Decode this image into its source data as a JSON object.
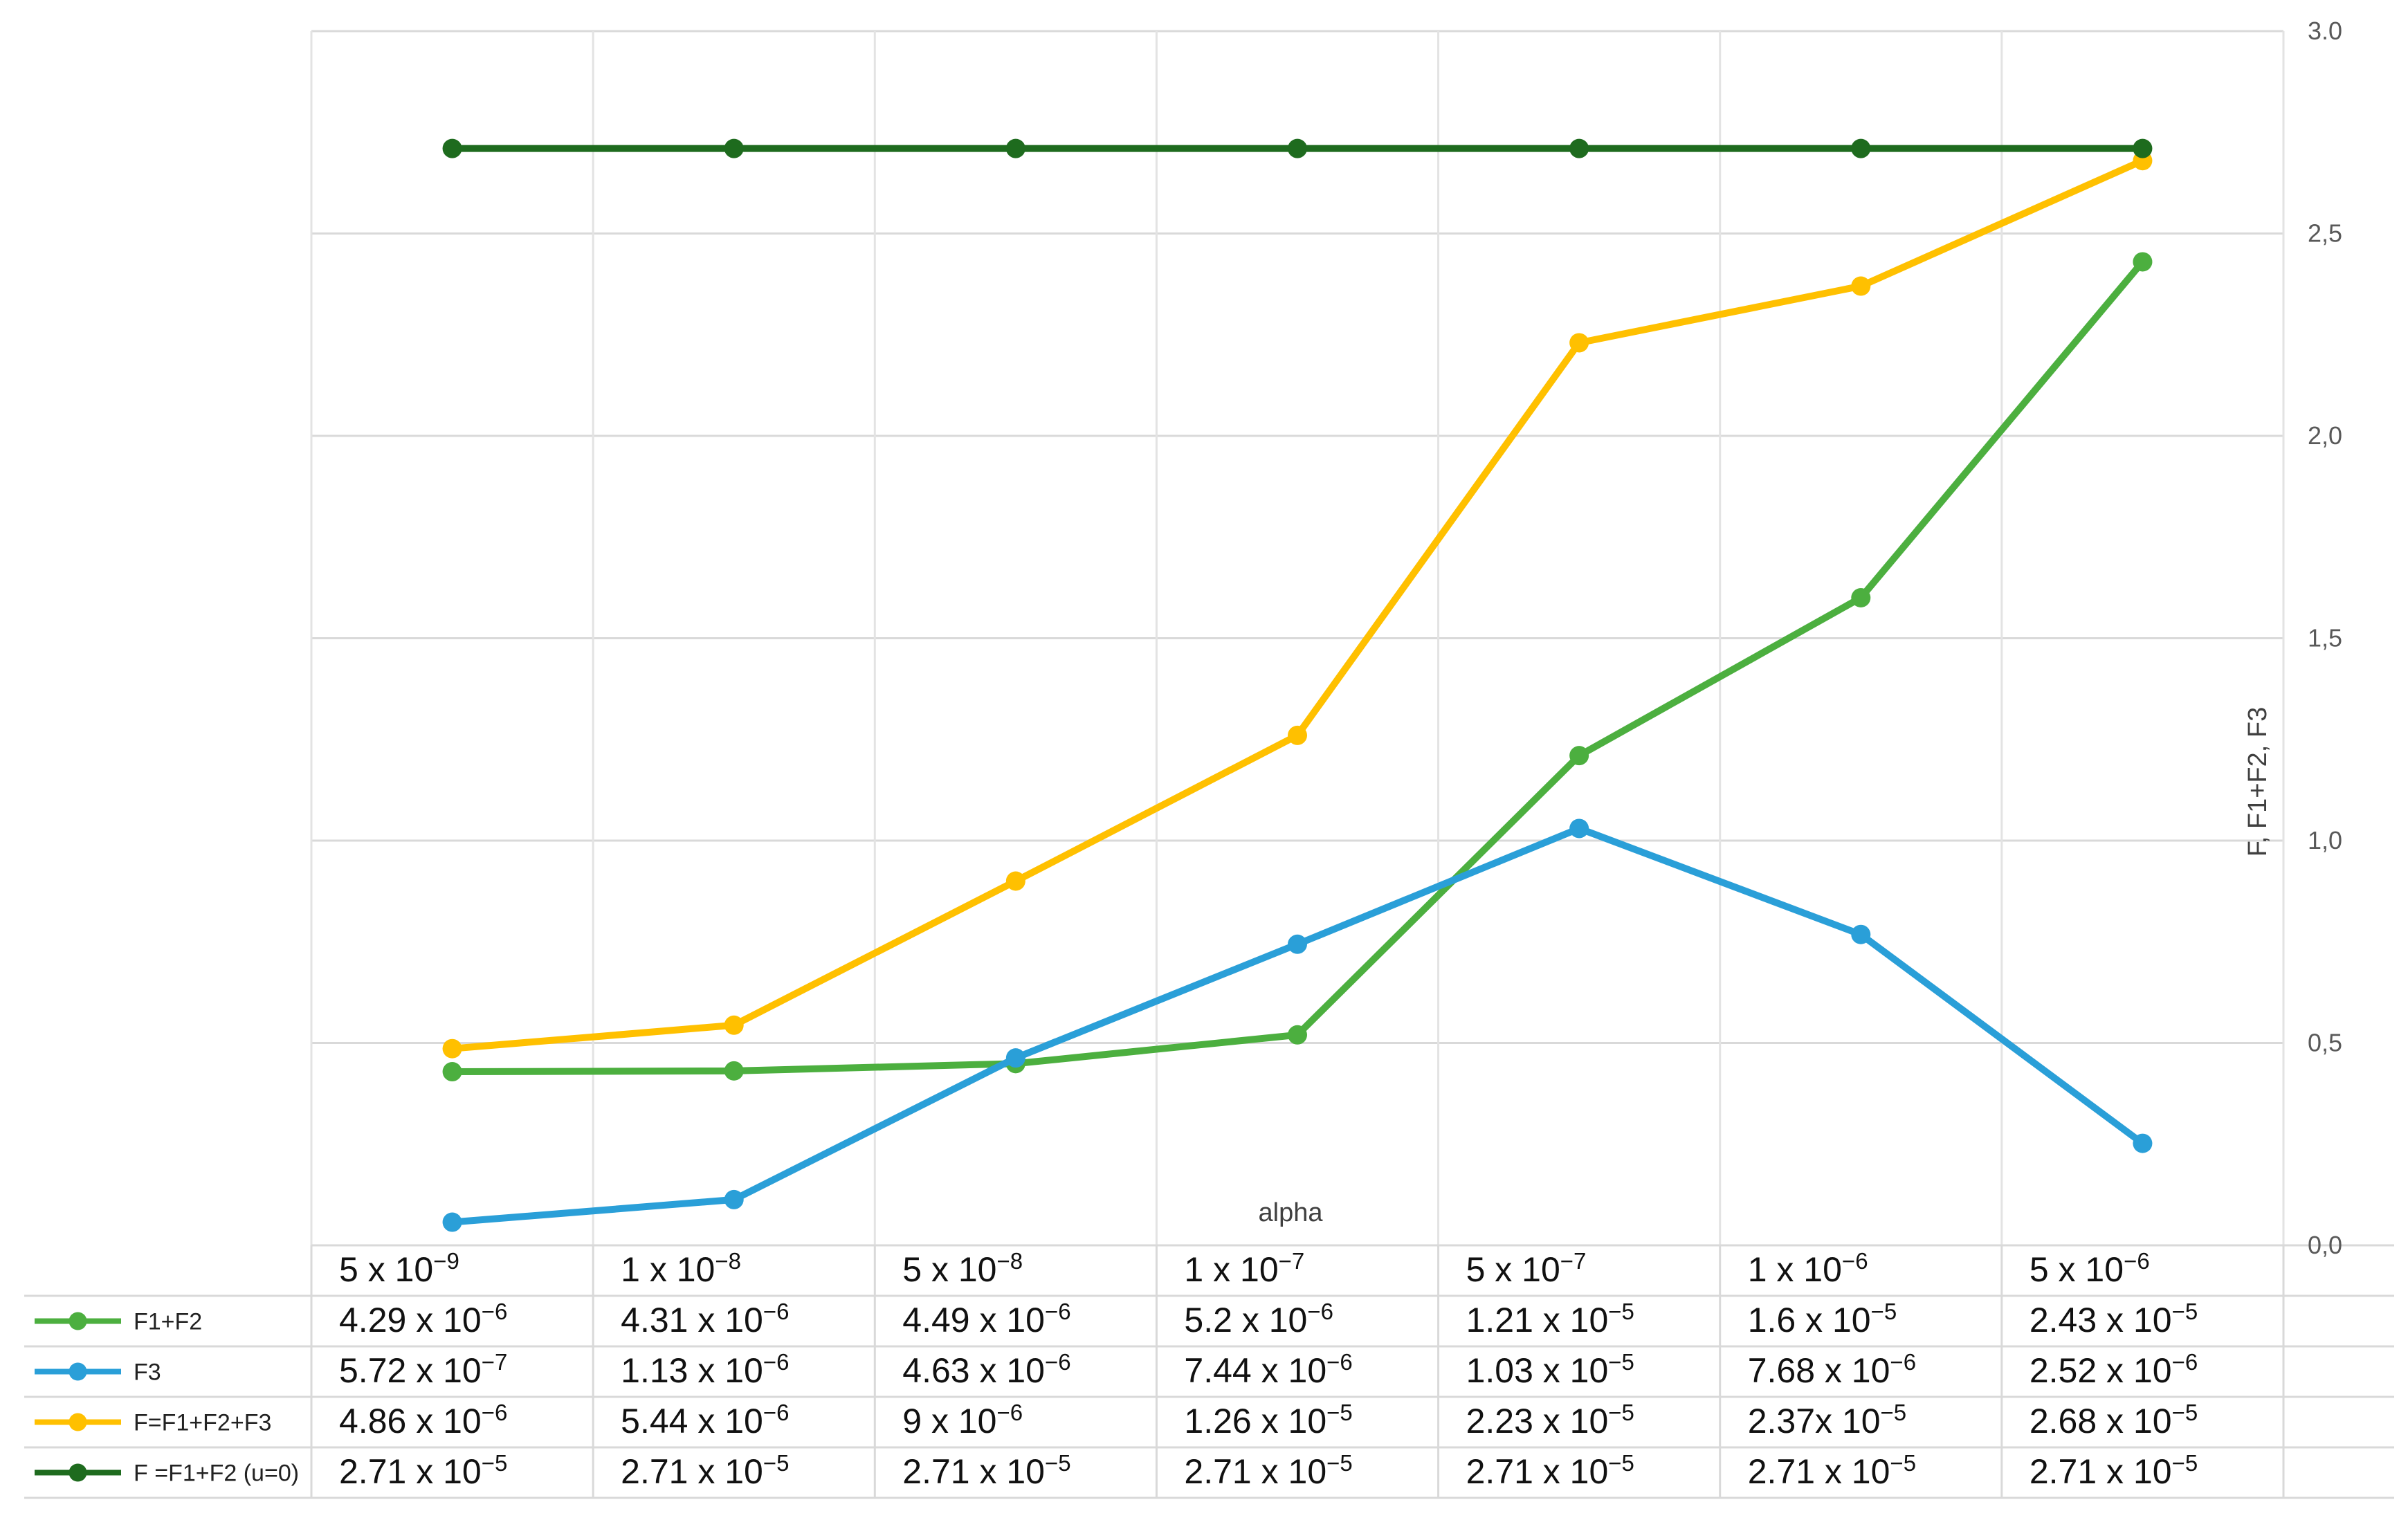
{
  "chart_data": {
    "type": "line",
    "xlabel": "alpha",
    "ylabel": "F, F1+F2, F3",
    "ylim": [
      0,
      3.0
    ],
    "y_ticks": [
      "0,0",
      "0,5",
      "1,0",
      "1,5",
      "2,0",
      "2,5",
      "3.0"
    ],
    "y_axis_side": "right",
    "grid": true,
    "legend": "bottom-left data table",
    "categories": [
      {
        "m": "5",
        "e": "−9"
      },
      {
        "m": "1",
        "e": "−8"
      },
      {
        "m": "5",
        "e": "−8"
      },
      {
        "m": "1",
        "e": "−7"
      },
      {
        "m": "5",
        "e": "−7"
      },
      {
        "m": "1",
        "e": "−6"
      },
      {
        "m": "5",
        "e": "−6"
      }
    ],
    "series": [
      {
        "name": "F1+F2",
        "color": "#4CAF3F",
        "values": [
          0.429,
          0.431,
          0.449,
          0.52,
          1.21,
          1.6,
          2.43
        ],
        "table": [
          {
            "m": "4.29",
            "e": "−6"
          },
          {
            "m": "4.31",
            "e": "−6"
          },
          {
            "m": "4.49",
            "e": "−6"
          },
          {
            "m": "5.2",
            "e": "−6"
          },
          {
            "m": "1.21",
            "e": "−5"
          },
          {
            "m": "1.6",
            "e": "−5"
          },
          {
            "m": "2.43",
            "e": "−5"
          }
        ]
      },
      {
        "name": "F3",
        "color": "#2A9FD8",
        "values": [
          0.0572,
          0.113,
          0.463,
          0.744,
          1.03,
          0.768,
          0.252
        ],
        "table": [
          {
            "m": "5.72",
            "e": "−7"
          },
          {
            "m": "1.13",
            "e": "−6"
          },
          {
            "m": "4.63",
            "e": "−6"
          },
          {
            "m": "7.44",
            "e": "−6"
          },
          {
            "m": "1.03",
            "e": "−5"
          },
          {
            "m": "7.68",
            "e": "−6"
          },
          {
            "m": "2.52",
            "e": "−6"
          }
        ]
      },
      {
        "name": "F=F1+F2+F3",
        "color": "#FFC000",
        "values": [
          0.486,
          0.544,
          0.9,
          1.26,
          2.23,
          2.37,
          2.68
        ],
        "table": [
          {
            "m": "4.86",
            "e": "−6"
          },
          {
            "m": "5.44",
            "e": "−6"
          },
          {
            "m": "9",
            "e": "−6"
          },
          {
            "m": "1.26",
            "e": "−5"
          },
          {
            "m": "2.23",
            "e": "−5"
          },
          {
            "m": "2.37",
            "e": "−5",
            "nospace": true
          },
          {
            "m": "2.68",
            "e": "−5"
          }
        ]
      },
      {
        "name": "F =F1+F2 (u=0)",
        "color": "#1E6B1E",
        "values": [
          2.71,
          2.71,
          2.71,
          2.71,
          2.71,
          2.71,
          2.71
        ],
        "table": [
          {
            "m": "2.71",
            "e": "−5"
          },
          {
            "m": "2.71",
            "e": "−5"
          },
          {
            "m": "2.71",
            "e": "−5"
          },
          {
            "m": "2.71",
            "e": "−5"
          },
          {
            "m": "2.71",
            "e": "−5"
          },
          {
            "m": "2.71",
            "e": "−5"
          },
          {
            "m": "2.71",
            "e": "−5"
          }
        ]
      }
    ]
  }
}
